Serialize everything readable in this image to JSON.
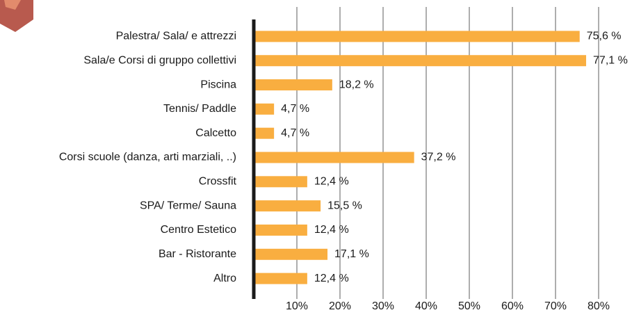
{
  "chart_data": {
    "type": "bar",
    "orientation": "horizontal",
    "categories": [
      "Palestra/ Sala/ e attrezzi",
      "Sala/e Corsi di gruppo collettivi",
      "Piscina",
      "Tennis/ Paddle",
      "Calcetto",
      "Corsi scuole (danza, arti marziali, ..)",
      "Crossfit",
      "SPA/ Terme/ Sauna",
      "Centro Estetico",
      "Bar - Ristorante",
      "Altro"
    ],
    "values": [
      75.6,
      77.1,
      18.2,
      4.7,
      4.7,
      37.2,
      12.4,
      15.5,
      12.4,
      17.1,
      12.4
    ],
    "value_labels": [
      "75,6 %",
      "77,1 %",
      "18,2 %",
      "4,7 %",
      "4,7 %",
      "37,2 %",
      "12,4 %",
      "15,5 %",
      "12,4 %",
      "17,1 %",
      "12,4 %"
    ],
    "color": "#f9ae40",
    "xlim": [
      0,
      80
    ],
    "xticks": [
      {
        "value": 10,
        "label": "10%"
      },
      {
        "value": 20,
        "label": "20%"
      },
      {
        "value": 30,
        "label": "30%"
      },
      {
        "value": 40,
        "label": "40%"
      },
      {
        "value": 50,
        "label": "50%"
      },
      {
        "value": 60,
        "label": "60%"
      },
      {
        "value": 70,
        "label": "70%"
      },
      {
        "value": 80,
        "label": "80%"
      }
    ],
    "grid": true
  }
}
